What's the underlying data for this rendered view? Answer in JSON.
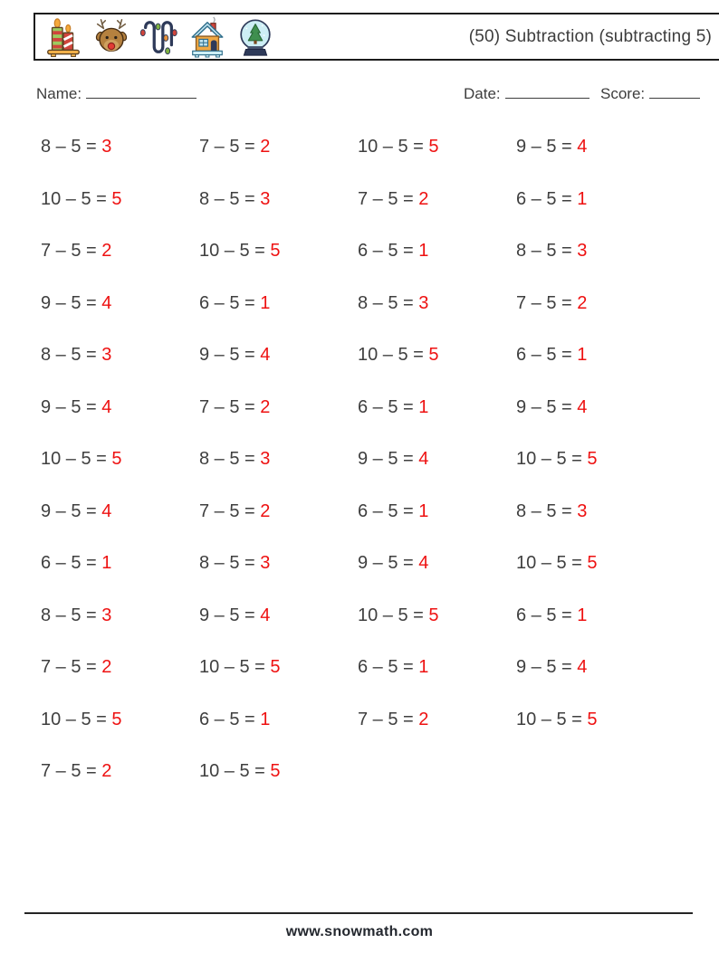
{
  "header": {
    "title": "(50) Subtraction (subtracting 5)",
    "icons": [
      "candles-icon",
      "reindeer-icon",
      "string-lights-icon",
      "house-icon",
      "snow-globe-icon"
    ]
  },
  "fields": {
    "name_label": "Name:",
    "date_label": "Date:",
    "score_label": "Score:"
  },
  "colors": {
    "answer_red": "#ee1111",
    "text_dark": "#3f3f3f"
  },
  "problems": [
    {
      "expression": "8 – 5 =",
      "answer": "3"
    },
    {
      "expression": "7 – 5 =",
      "answer": "2"
    },
    {
      "expression": "10 – 5 =",
      "answer": "5"
    },
    {
      "expression": "9 – 5 =",
      "answer": "4"
    },
    {
      "expression": "10 – 5 =",
      "answer": "5"
    },
    {
      "expression": "8 – 5 =",
      "answer": "3"
    },
    {
      "expression": "7 – 5 =",
      "answer": "2"
    },
    {
      "expression": "6 – 5 =",
      "answer": "1"
    },
    {
      "expression": "7 – 5 =",
      "answer": "2"
    },
    {
      "expression": "10 – 5 =",
      "answer": "5"
    },
    {
      "expression": "6 – 5 =",
      "answer": "1"
    },
    {
      "expression": "8 – 5 =",
      "answer": "3"
    },
    {
      "expression": "9 – 5 =",
      "answer": "4"
    },
    {
      "expression": "6 – 5 =",
      "answer": "1"
    },
    {
      "expression": "8 – 5 =",
      "answer": "3"
    },
    {
      "expression": "7 – 5 =",
      "answer": "2"
    },
    {
      "expression": "8 – 5 =",
      "answer": "3"
    },
    {
      "expression": "9 – 5 =",
      "answer": "4"
    },
    {
      "expression": "10 – 5 =",
      "answer": "5"
    },
    {
      "expression": "6 – 5 =",
      "answer": "1"
    },
    {
      "expression": "9 – 5 =",
      "answer": "4"
    },
    {
      "expression": "7 – 5 =",
      "answer": "2"
    },
    {
      "expression": "6 – 5 =",
      "answer": "1"
    },
    {
      "expression": "9 – 5 =",
      "answer": "4"
    },
    {
      "expression": "10 – 5 =",
      "answer": "5"
    },
    {
      "expression": "8 – 5 =",
      "answer": "3"
    },
    {
      "expression": "9 – 5 =",
      "answer": "4"
    },
    {
      "expression": "10 – 5 =",
      "answer": "5"
    },
    {
      "expression": "9 – 5 =",
      "answer": "4"
    },
    {
      "expression": "7 – 5 =",
      "answer": "2"
    },
    {
      "expression": "6 – 5 =",
      "answer": "1"
    },
    {
      "expression": "8 – 5 =",
      "answer": "3"
    },
    {
      "expression": "6 – 5 =",
      "answer": "1"
    },
    {
      "expression": "8 – 5 =",
      "answer": "3"
    },
    {
      "expression": "9 – 5 =",
      "answer": "4"
    },
    {
      "expression": "10 – 5 =",
      "answer": "5"
    },
    {
      "expression": "8 – 5 =",
      "answer": "3"
    },
    {
      "expression": "9 – 5 =",
      "answer": "4"
    },
    {
      "expression": "10 – 5 =",
      "answer": "5"
    },
    {
      "expression": "6 – 5 =",
      "answer": "1"
    },
    {
      "expression": "7 – 5 =",
      "answer": "2"
    },
    {
      "expression": "10 – 5 =",
      "answer": "5"
    },
    {
      "expression": "6 – 5 =",
      "answer": "1"
    },
    {
      "expression": "9 – 5 =",
      "answer": "4"
    },
    {
      "expression": "10 – 5 =",
      "answer": "5"
    },
    {
      "expression": "6 – 5 =",
      "answer": "1"
    },
    {
      "expression": "7 – 5 =",
      "answer": "2"
    },
    {
      "expression": "10 – 5 =",
      "answer": "5"
    },
    {
      "expression": "7 – 5 =",
      "answer": "2"
    },
    {
      "expression": "10 – 5 =",
      "answer": "5"
    }
  ],
  "footer": {
    "website": "www.snowmath.com"
  }
}
